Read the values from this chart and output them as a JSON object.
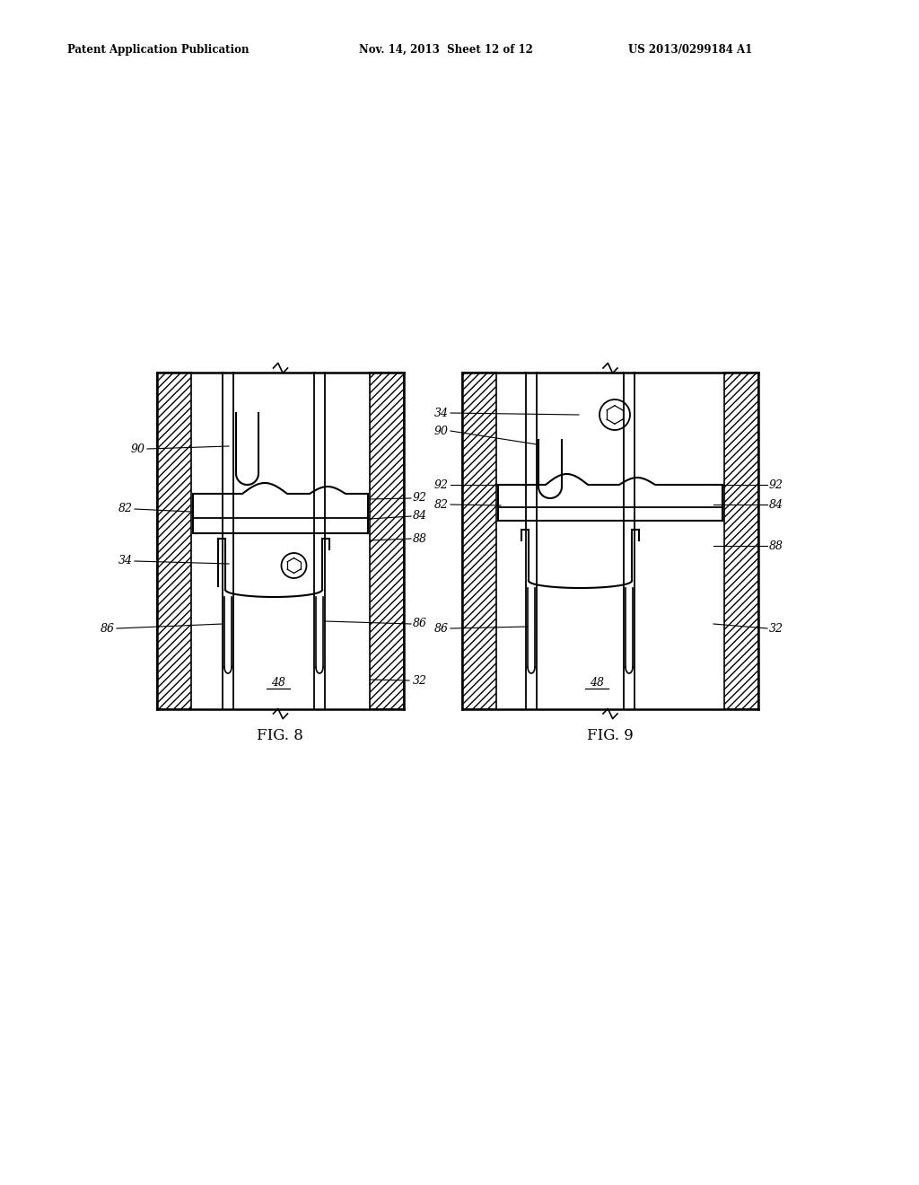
{
  "title_left": "Patent Application Publication",
  "title_center": "Nov. 14, 2013  Sheet 12 of 12",
  "title_right": "US 2013/0299184 A1",
  "fig8_label": "FIG. 8",
  "fig9_label": "FIG. 9",
  "bg_color": "#ffffff"
}
